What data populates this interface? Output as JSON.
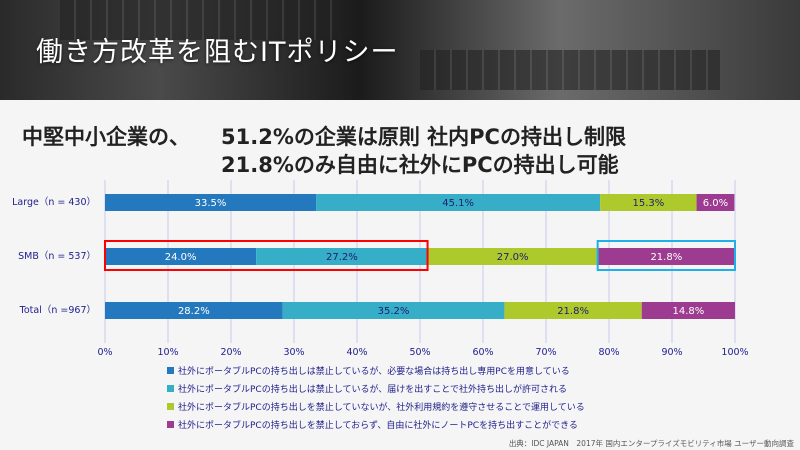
{
  "slide_title": "働き方改革を阻むITポリシー",
  "headline": {
    "prefix": "中堅中小企業の、",
    "line1": "51.2%の企業は原則 社内PCの持出し制限",
    "line2": "21.8%のみ自由に社外にPCの持出し可能"
  },
  "chart_data": {
    "type": "bar",
    "orientation": "horizontal-stacked",
    "categories": [
      "Large（n = 430）",
      "SMB（n = 537）",
      "Total（n =967）"
    ],
    "series": [
      {
        "name": "社外にポータブルPCの持ち出しは禁止しているが、必要な場合は持ち出し専用PCを用意している",
        "color": "#2478bd",
        "values": [
          33.5,
          24.0,
          28.2
        ],
        "labels": [
          "33.5%",
          "24.0%",
          "28.2%"
        ]
      },
      {
        "name": "社外にポータブルPCの持ち出しは禁止しているが、届けを出すことで社外持ち出しが許可される",
        "color": "#37aec8",
        "values": [
          45.1,
          27.2,
          35.2
        ],
        "labels": [
          "45.1%",
          "27.2%",
          "35.2%"
        ]
      },
      {
        "name": "社外にポータブルPCの持ち出しを禁止していないが、社外利用規約を遵守させることで運用している",
        "color": "#adc92c",
        "values": [
          15.3,
          27.0,
          21.8
        ],
        "labels": [
          "15.3%",
          "27.0%",
          "21.8%"
        ]
      },
      {
        "name": "社外にポータブルPCの持ち出しを禁止しておらず、自由に社外にノートPCを持ち出すことができる",
        "color": "#9c3b8f",
        "values": [
          6.0,
          21.8,
          14.8
        ],
        "labels": [
          "6.0%",
          "21.8%",
          "14.8%"
        ]
      }
    ],
    "xlim": [
      0,
      100
    ],
    "xticks": [
      "0%",
      "10%",
      "20%",
      "30%",
      "40%",
      "50%",
      "60%",
      "70%",
      "80%",
      "90%",
      "100%"
    ],
    "grid": true,
    "legend_position": "bottom",
    "highlights": [
      {
        "category": "SMB（n = 537）",
        "from": 0,
        "to": 51.2,
        "color": "#ff0000"
      },
      {
        "category": "SMB（n = 537）",
        "from": 78.2,
        "to": 100,
        "color": "#1fb0ea"
      }
    ]
  },
  "source": "出典：IDC JAPAN　2017年 国内エンタープライズモビリティ市場 ユーザー動向調査"
}
